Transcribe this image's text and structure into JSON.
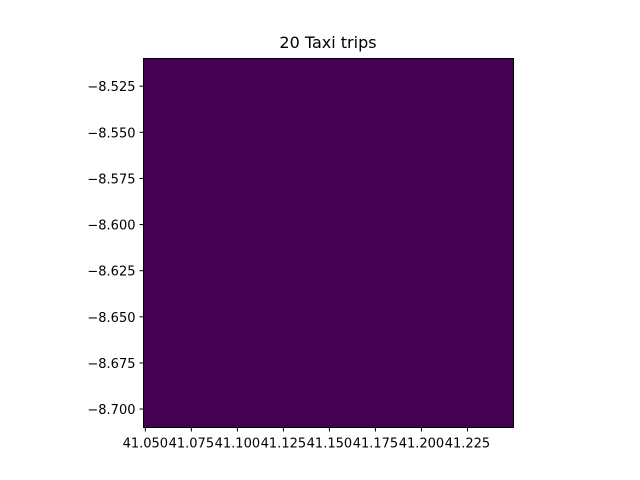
{
  "chart_data": {
    "type": "heatmap",
    "title": "20 Taxi trips",
    "xlabel": "",
    "ylabel": "",
    "xlim": [
      41.049,
      41.25
    ],
    "ylim": [
      -8.71,
      -8.51
    ],
    "x_ticks": [
      41.05,
      41.075,
      41.1,
      41.125,
      41.15,
      41.175,
      41.2,
      41.225
    ],
    "x_tick_labels": [
      "41.050",
      "41.075",
      "41.100",
      "41.125",
      "41.150",
      "41.175",
      "41.200",
      "41.225"
    ],
    "y_ticks": [
      -8.525,
      -8.55,
      -8.575,
      -8.6,
      -8.625,
      -8.65,
      -8.675,
      -8.7
    ],
    "y_tick_labels": [
      "−8.525",
      "−8.550",
      "−8.575",
      "−8.600",
      "−8.625",
      "−8.650",
      "−8.675",
      "−8.700"
    ],
    "values": [
      [
        0
      ]
    ],
    "colormap": "viridis",
    "fill_color": "#440154",
    "grid": false,
    "legend": "none"
  }
}
